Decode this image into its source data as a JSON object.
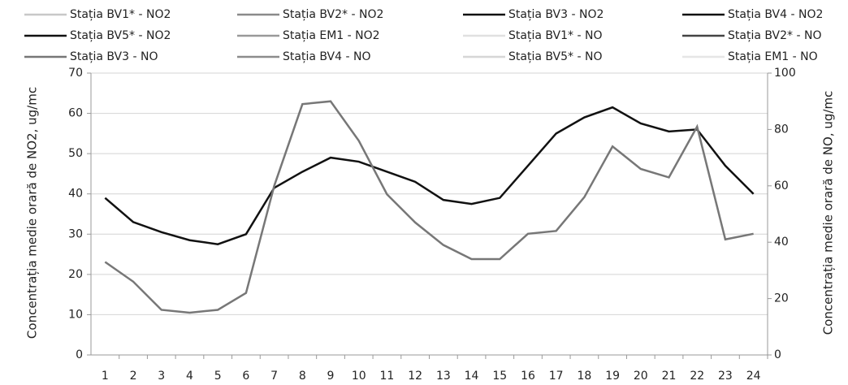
{
  "chart_data": {
    "type": "line",
    "ylabel": "Concentrația medie orară de NO2, ug/mc",
    "y2label": "Concentrația medie orară de NO, ug/mc",
    "categories": [
      "1",
      "2",
      "3",
      "4",
      "5",
      "6",
      "7",
      "8",
      "9",
      "10",
      "11",
      "12",
      "13",
      "14",
      "15",
      "16",
      "17",
      "18",
      "19",
      "20",
      "21",
      "22",
      "23",
      "24"
    ],
    "ylim": [
      0,
      70
    ],
    "yticks": [
      0,
      10,
      20,
      30,
      40,
      50,
      60,
      70
    ],
    "y2lim": [
      0,
      100
    ],
    "y2ticks": [
      0,
      20,
      40,
      60,
      80,
      100
    ],
    "grid": true,
    "series": [
      {
        "name": "Stația BV1* - NO2",
        "color": "#c8c8c8",
        "values": [
          null,
          null,
          null,
          null,
          null,
          null,
          null,
          null,
          null,
          null,
          null,
          null,
          null,
          null,
          null,
          null,
          null,
          null,
          null,
          null,
          null,
          null,
          null,
          null
        ]
      },
      {
        "name": "Stația BV2* - NO2",
        "color": "#8a8a8a",
        "values": [
          null,
          null,
          null,
          null,
          null,
          null,
          null,
          null,
          null,
          null,
          null,
          null,
          null,
          null,
          null,
          null,
          null,
          null,
          null,
          null,
          null,
          null,
          null,
          null
        ]
      },
      {
        "name": "Stația BV3 - NO2",
        "color": "#111111",
        "values": [
          39,
          33,
          30.5,
          28.5,
          27.5,
          30,
          41.5,
          45.5,
          49,
          48,
          45.5,
          43,
          38.5,
          37.5,
          39,
          47,
          55,
          59,
          61.5,
          57.5,
          55.5,
          56,
          47,
          40
        ]
      },
      {
        "name": "Stația BV4 - NO2",
        "color": "#111111",
        "values": [
          null,
          null,
          null,
          null,
          null,
          null,
          null,
          null,
          null,
          null,
          null,
          null,
          null,
          null,
          null,
          null,
          null,
          null,
          null,
          null,
          null,
          null,
          null,
          null
        ]
      },
      {
        "name": "Stația BV5* - NO2",
        "color": "#111111",
        "values": [
          null,
          null,
          null,
          null,
          null,
          null,
          null,
          null,
          null,
          null,
          null,
          null,
          null,
          null,
          null,
          null,
          null,
          null,
          null,
          null,
          null,
          null,
          null,
          null
        ]
      },
      {
        "name": "Stația EM1 - NO2",
        "color": "#999999",
        "values": [
          null,
          null,
          null,
          null,
          null,
          null,
          null,
          null,
          null,
          null,
          null,
          null,
          null,
          null,
          null,
          null,
          null,
          null,
          null,
          null,
          null,
          null,
          null,
          null
        ]
      },
      {
        "name": "Stația BV1* - NO",
        "color": "#e0e0e0",
        "axis": "y2",
        "values": [
          null,
          null,
          null,
          null,
          null,
          null,
          null,
          null,
          null,
          null,
          null,
          null,
          null,
          null,
          null,
          null,
          null,
          null,
          null,
          null,
          null,
          null,
          null,
          null
        ]
      },
      {
        "name": "Stația BV2* - NO",
        "color": "#444444",
        "axis": "y2",
        "values": [
          null,
          null,
          null,
          null,
          null,
          null,
          null,
          null,
          null,
          null,
          null,
          null,
          null,
          null,
          null,
          null,
          null,
          null,
          null,
          null,
          null,
          null,
          null,
          null
        ]
      },
      {
        "name": "Stația BV3 - NO",
        "color": "#777777",
        "axis": "y2",
        "values": [
          33,
          26,
          16,
          15,
          16,
          22,
          60,
          89,
          90,
          76,
          57,
          47,
          39,
          34,
          34,
          43,
          44,
          56,
          74,
          66,
          63,
          81,
          41,
          43
        ]
      },
      {
        "name": "Stația BV4 - NO",
        "color": "#8c8c8c",
        "axis": "y2",
        "values": [
          null,
          null,
          null,
          null,
          null,
          null,
          null,
          null,
          null,
          null,
          null,
          null,
          null,
          null,
          null,
          null,
          null,
          null,
          null,
          null,
          null,
          null,
          null,
          null
        ]
      },
      {
        "name": "Stația BV5* - NO",
        "color": "#d6d6d6",
        "axis": "y2",
        "values": [
          null,
          null,
          null,
          null,
          null,
          null,
          null,
          null,
          null,
          null,
          null,
          null,
          null,
          null,
          null,
          null,
          null,
          null,
          null,
          null,
          null,
          null,
          null,
          null
        ]
      },
      {
        "name": "Stația EM1 - NO",
        "color": "#e6e6e6",
        "axis": "y2",
        "values": [
          null,
          null,
          null,
          null,
          null,
          null,
          null,
          null,
          null,
          null,
          null,
          null,
          null,
          null,
          null,
          null,
          null,
          null,
          null,
          null,
          null,
          null,
          null,
          null
        ]
      }
    ]
  }
}
